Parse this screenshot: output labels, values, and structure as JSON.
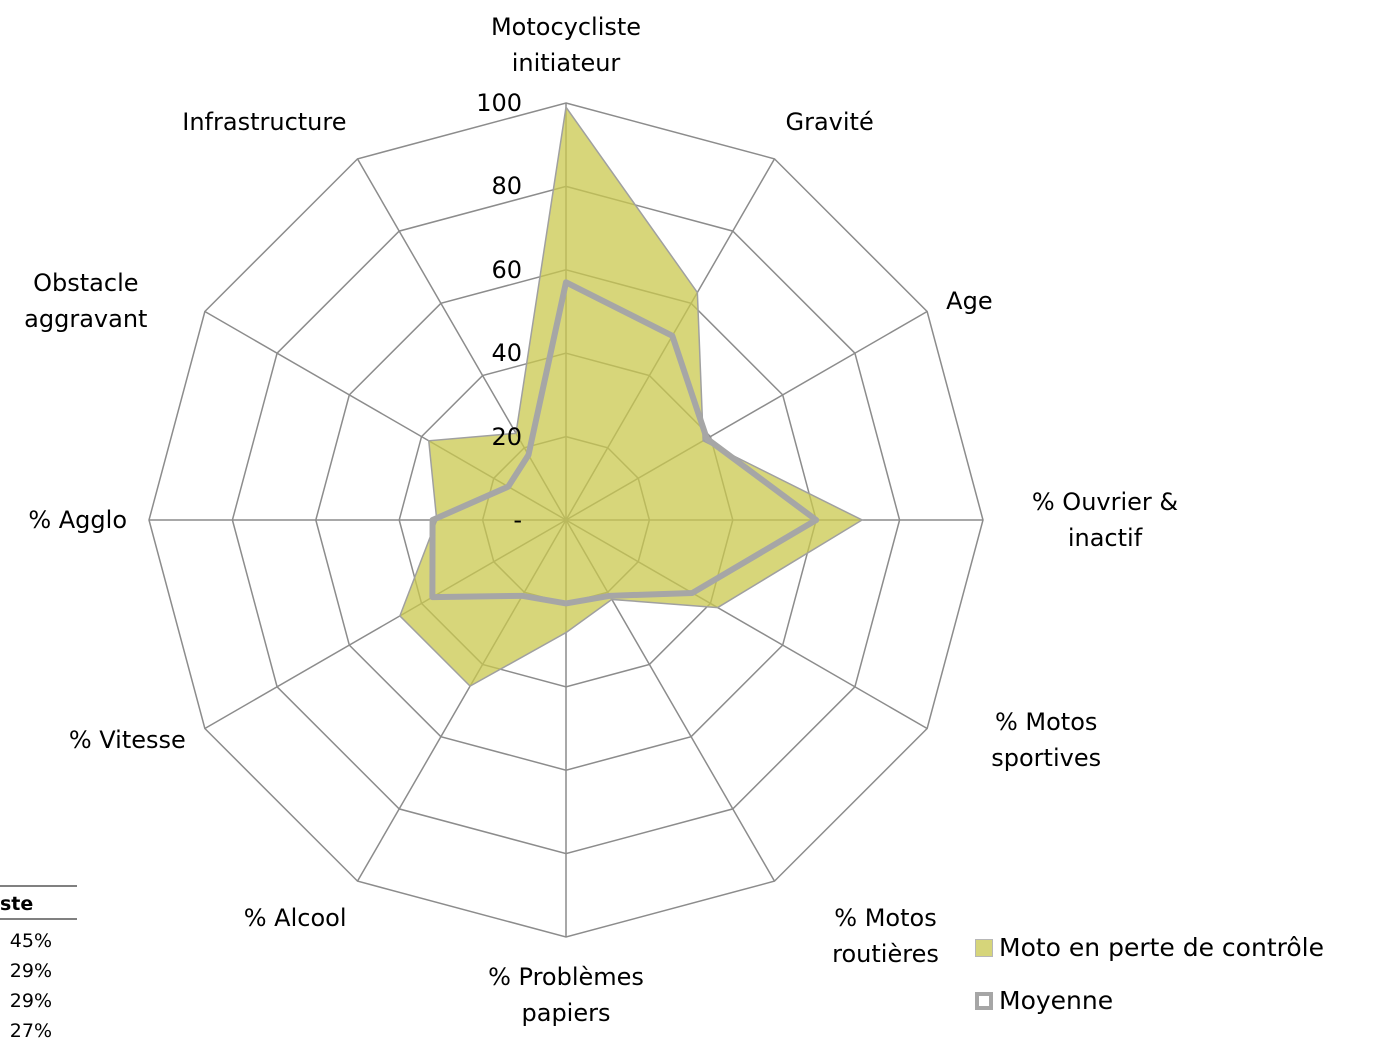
{
  "chart_data": {
    "type": "radar",
    "categories": [
      "Motocycliste initiateur",
      "Gravité",
      "Age",
      "% Ouvrier & inactif",
      "% Motos sportives",
      "% Motos routières",
      "% Problèmes papiers",
      "% Alcool",
      "% Vitesse",
      "% Agglo",
      "Obstacle aggravant",
      "Infrastructure"
    ],
    "series": [
      {
        "name": "Moto en perte de contrôle",
        "color": "#c9c84e",
        "values": [
          99,
          63,
          38,
          71,
          42,
          22,
          27,
          46,
          46,
          31,
          38,
          24
        ]
      },
      {
        "name": "Moyenne",
        "color": "#a6a6a6",
        "values": [
          57,
          51,
          39,
          60,
          35,
          21,
          20,
          21,
          37,
          32,
          16,
          18
        ]
      }
    ],
    "ylim": [
      0,
      100
    ],
    "yticks": [
      {
        "value": 0,
        "label": "-"
      },
      20,
      40,
      60,
      80,
      100
    ],
    "grid": true,
    "legend": "bottom-right"
  },
  "table_fragment": {
    "header": "ste",
    "rows": [
      "45%",
      "29%",
      "29%",
      "27%"
    ]
  }
}
